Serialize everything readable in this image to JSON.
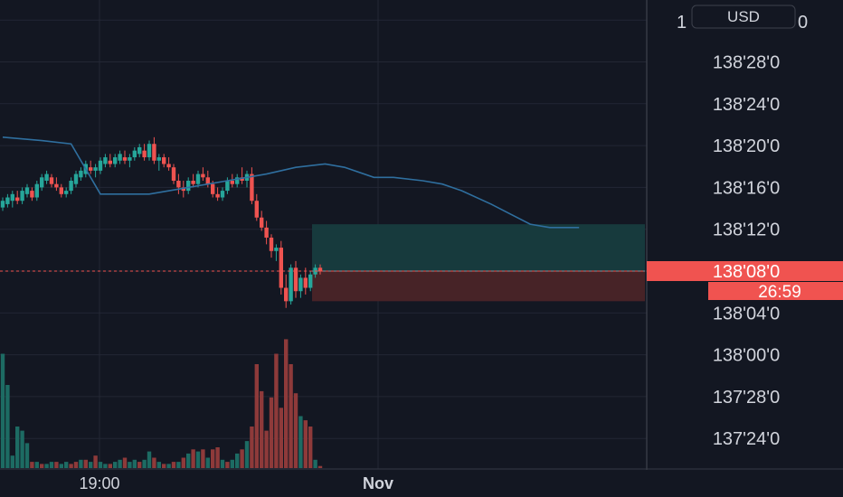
{
  "chart_data": {
    "type": "candlestick",
    "currency_button": "USD",
    "top_partial_label": "1",
    "price_axis": {
      "ticks": [
        "138'28'0",
        "138'24'0",
        "138'20'0",
        "138'16'0",
        "138'12'0",
        "138'08'0",
        "138'04'0",
        "138'00'0",
        "137'28'0",
        "137'24'0"
      ],
      "tick_values": [
        138.875,
        138.75,
        138.625,
        138.5,
        138.375,
        138.25,
        138.125,
        138.0,
        137.875,
        137.75
      ],
      "range": [
        137.7,
        139.0
      ]
    },
    "time_axis": {
      "ticks": [
        "19:00",
        "Nov"
      ]
    },
    "last_price": {
      "label": "138'08'0",
      "value": 138.25,
      "countdown": "26:59"
    },
    "position": {
      "entry": 138.25,
      "target": 138.39,
      "stop": 138.16
    },
    "candles": [
      [
        138.44,
        138.47,
        138.43,
        138.46
      ],
      [
        138.45,
        138.48,
        138.44,
        138.47
      ],
      [
        138.46,
        138.49,
        138.44,
        138.48
      ],
      [
        138.47,
        138.49,
        138.45,
        138.46
      ],
      [
        138.46,
        138.5,
        138.45,
        138.49
      ],
      [
        138.48,
        138.51,
        138.47,
        138.5
      ],
      [
        138.49,
        138.5,
        138.46,
        138.47
      ],
      [
        138.47,
        138.52,
        138.46,
        138.51
      ],
      [
        138.5,
        138.54,
        138.49,
        138.53
      ],
      [
        138.52,
        138.55,
        138.51,
        138.54
      ],
      [
        138.53,
        138.54,
        138.5,
        138.51
      ],
      [
        138.51,
        138.53,
        138.49,
        138.5
      ],
      [
        138.5,
        138.51,
        138.47,
        138.48
      ],
      [
        138.48,
        138.5,
        138.47,
        138.49
      ],
      [
        138.49,
        138.53,
        138.48,
        138.52
      ],
      [
        138.51,
        138.55,
        138.5,
        138.54
      ],
      [
        138.53,
        138.56,
        138.52,
        138.55
      ],
      [
        138.54,
        138.58,
        138.53,
        138.57
      ],
      [
        138.56,
        138.58,
        138.54,
        138.55
      ],
      [
        138.55,
        138.57,
        138.53,
        138.56
      ],
      [
        138.55,
        138.59,
        138.54,
        138.58
      ],
      [
        138.57,
        138.6,
        138.56,
        138.59
      ],
      [
        138.58,
        138.6,
        138.56,
        138.57
      ],
      [
        138.57,
        138.6,
        138.56,
        138.59
      ],
      [
        138.58,
        138.61,
        138.57,
        138.6
      ],
      [
        138.59,
        138.61,
        138.57,
        138.58
      ],
      [
        138.58,
        138.6,
        138.56,
        138.59
      ],
      [
        138.59,
        138.62,
        138.58,
        138.61
      ],
      [
        138.6,
        138.63,
        138.59,
        138.62
      ],
      [
        138.61,
        138.63,
        138.58,
        138.59
      ],
      [
        138.59,
        138.64,
        138.58,
        138.63
      ],
      [
        138.63,
        138.65,
        138.57,
        138.58
      ],
      [
        138.58,
        138.6,
        138.55,
        138.59
      ],
      [
        138.59,
        138.6,
        138.56,
        138.57
      ],
      [
        138.57,
        138.59,
        138.55,
        138.56
      ],
      [
        138.56,
        138.57,
        138.51,
        138.52
      ],
      [
        138.52,
        138.54,
        138.48,
        138.5
      ],
      [
        138.5,
        138.52,
        138.47,
        138.49
      ],
      [
        138.49,
        138.53,
        138.48,
        138.52
      ],
      [
        138.52,
        138.54,
        138.5,
        138.51
      ],
      [
        138.51,
        138.55,
        138.5,
        138.54
      ],
      [
        138.54,
        138.56,
        138.52,
        138.53
      ],
      [
        138.53,
        138.55,
        138.5,
        138.51
      ],
      [
        138.51,
        138.52,
        138.47,
        138.48
      ],
      [
        138.48,
        138.5,
        138.46,
        138.47
      ],
      [
        138.47,
        138.5,
        138.46,
        138.49
      ],
      [
        138.49,
        138.53,
        138.48,
        138.52
      ],
      [
        138.52,
        138.54,
        138.5,
        138.51
      ],
      [
        138.51,
        138.54,
        138.5,
        138.53
      ],
      [
        138.53,
        138.56,
        138.51,
        138.52
      ],
      [
        138.52,
        138.55,
        138.5,
        138.54
      ],
      [
        138.54,
        138.56,
        138.45,
        138.46
      ],
      [
        138.46,
        138.48,
        138.4,
        138.41
      ],
      [
        138.41,
        138.43,
        138.37,
        138.38
      ],
      [
        138.38,
        138.4,
        138.33,
        138.35
      ],
      [
        138.35,
        138.36,
        138.29,
        138.31
      ],
      [
        138.31,
        138.33,
        138.28,
        138.32
      ],
      [
        138.32,
        138.34,
        138.18,
        138.2
      ],
      [
        138.2,
        138.24,
        138.14,
        138.16
      ],
      [
        138.16,
        138.27,
        138.15,
        138.26
      ],
      [
        138.26,
        138.28,
        138.17,
        138.19
      ],
      [
        138.19,
        138.24,
        138.17,
        138.23
      ],
      [
        138.23,
        138.26,
        138.18,
        138.2
      ],
      [
        138.2,
        138.25,
        138.19,
        138.24
      ],
      [
        138.24,
        138.27,
        138.23,
        138.26
      ],
      [
        138.26,
        138.27,
        138.24,
        138.25
      ]
    ],
    "moving_average": [
      [
        0,
        138.65
      ],
      [
        8,
        138.64
      ],
      [
        14,
        138.63
      ],
      [
        20,
        138.48
      ],
      [
        30,
        138.48
      ],
      [
        38,
        138.5
      ],
      [
        46,
        138.52
      ],
      [
        54,
        138.54
      ],
      [
        60,
        138.56
      ],
      [
        66,
        138.57
      ],
      [
        70,
        138.56
      ],
      [
        76,
        138.53
      ],
      [
        80,
        138.53
      ],
      [
        86,
        138.52
      ],
      [
        90,
        138.51
      ],
      [
        94,
        138.49
      ],
      [
        100,
        138.45
      ],
      [
        104,
        138.42
      ],
      [
        108,
        138.39
      ],
      [
        112,
        138.38
      ],
      [
        118,
        138.38
      ]
    ],
    "volume": [
      {
        "v": 0.55,
        "up": true
      },
      {
        "v": 0.4,
        "up": true
      },
      {
        "v": 0.06,
        "up": true
      },
      {
        "v": 0.2,
        "up": true
      },
      {
        "v": 0.18,
        "up": true
      },
      {
        "v": 0.12,
        "up": true
      },
      {
        "v": 0.03,
        "up": false
      },
      {
        "v": 0.03,
        "up": true
      },
      {
        "v": 0.02,
        "up": false
      },
      {
        "v": 0.02,
        "up": true
      },
      {
        "v": 0.03,
        "up": true
      },
      {
        "v": 0.03,
        "up": false
      },
      {
        "v": 0.02,
        "up": true
      },
      {
        "v": 0.03,
        "up": true
      },
      {
        "v": 0.02,
        "up": false
      },
      {
        "v": 0.03,
        "up": false
      },
      {
        "v": 0.04,
        "up": true
      },
      {
        "v": 0.04,
        "up": false
      },
      {
        "v": 0.03,
        "up": true
      },
      {
        "v": 0.06,
        "up": false
      },
      {
        "v": 0.03,
        "up": true
      },
      {
        "v": 0.02,
        "up": true
      },
      {
        "v": 0.02,
        "up": false
      },
      {
        "v": 0.03,
        "up": true
      },
      {
        "v": 0.04,
        "up": true
      },
      {
        "v": 0.05,
        "up": false
      },
      {
        "v": 0.03,
        "up": true
      },
      {
        "v": 0.04,
        "up": true
      },
      {
        "v": 0.03,
        "up": false
      },
      {
        "v": 0.04,
        "up": true
      },
      {
        "v": 0.08,
        "up": true
      },
      {
        "v": 0.05,
        "up": false
      },
      {
        "v": 0.03,
        "up": true
      },
      {
        "v": 0.02,
        "up": false
      },
      {
        "v": 0.02,
        "up": true
      },
      {
        "v": 0.03,
        "up": false
      },
      {
        "v": 0.03,
        "up": true
      },
      {
        "v": 0.05,
        "up": false
      },
      {
        "v": 0.07,
        "up": true
      },
      {
        "v": 0.09,
        "up": false
      },
      {
        "v": 0.08,
        "up": true
      },
      {
        "v": 0.09,
        "up": false
      },
      {
        "v": 0.05,
        "up": true
      },
      {
        "v": 0.09,
        "up": false
      },
      {
        "v": 0.1,
        "up": false
      },
      {
        "v": 0.04,
        "up": true
      },
      {
        "v": 0.03,
        "up": false
      },
      {
        "v": 0.04,
        "up": true
      },
      {
        "v": 0.07,
        "up": true
      },
      {
        "v": 0.09,
        "up": false
      },
      {
        "v": 0.13,
        "up": true
      },
      {
        "v": 0.2,
        "up": false
      },
      {
        "v": 0.5,
        "up": false
      },
      {
        "v": 0.37,
        "up": false
      },
      {
        "v": 0.18,
        "up": false
      },
      {
        "v": 0.34,
        "up": false
      },
      {
        "v": 0.55,
        "up": false
      },
      {
        "v": 0.29,
        "up": false
      },
      {
        "v": 0.62,
        "up": false
      },
      {
        "v": 0.5,
        "up": false
      },
      {
        "v": 0.36,
        "up": false
      },
      {
        "v": 0.25,
        "up": true
      },
      {
        "v": 0.23,
        "up": false
      },
      {
        "v": 0.2,
        "up": false
      },
      {
        "v": 0.04,
        "up": true
      },
      {
        "v": 0.01,
        "up": false
      }
    ]
  },
  "colors": {
    "background": "#131722",
    "grid": "#232734",
    "axis_text": "#d1d4dc",
    "up": "#26a69a",
    "down": "#ef5350",
    "ma_line": "#2f6f9f",
    "target_zone": "#173a3d",
    "stop_zone": "#472327",
    "price_label_bg": "#f05350"
  }
}
